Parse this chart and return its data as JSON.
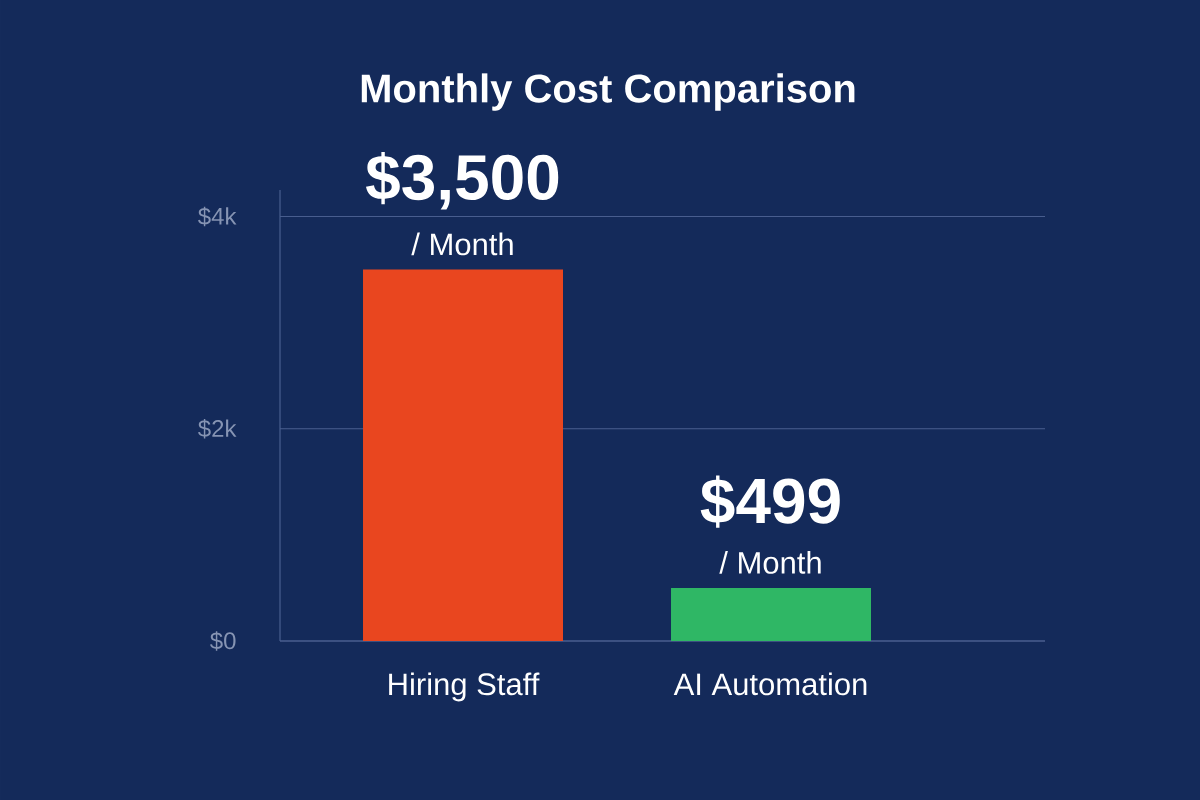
{
  "chart_data": {
    "type": "bar",
    "title": "Monthly Cost Comparison",
    "categories": [
      "Hiring Staff",
      "AI Automation"
    ],
    "values": [
      3500,
      499
    ],
    "colors": [
      "#e9461f",
      "#2fb765"
    ],
    "value_labels": [
      "$3,500",
      "$499"
    ],
    "annotations": [
      {
        "text": "/ Month",
        "x": "Hiring Staff",
        "y": 3500
      },
      {
        "text": "/ Month",
        "x": "AI Automation",
        "y": 499
      }
    ],
    "ylim": [
      0,
      4250
    ],
    "yticks": [
      {
        "value": 0,
        "label": "$0"
      },
      {
        "value": 2000,
        "label": "$2k"
      },
      {
        "value": 4000,
        "label": "$4k"
      }
    ],
    "grid": "y"
  }
}
